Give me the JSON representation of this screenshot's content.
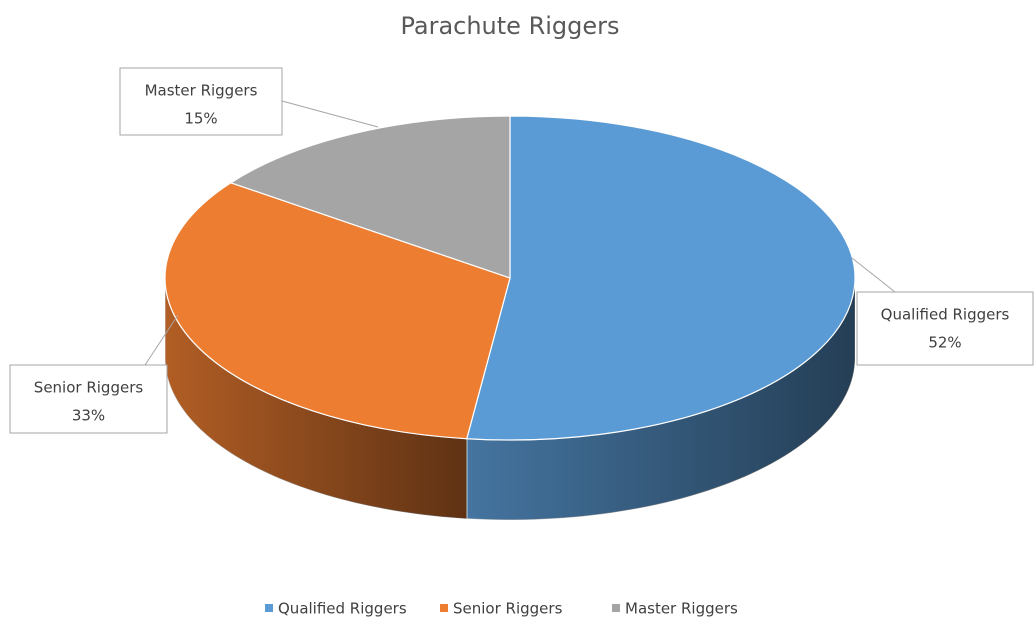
{
  "chart_data": {
    "type": "pie",
    "title": "Parachute Riggers",
    "categories": [
      "Qualified Riggers",
      "Senior Riggers",
      "Master Riggers"
    ],
    "values": [
      52,
      33,
      15
    ],
    "value_labels": [
      "52%",
      "33%",
      "15%"
    ],
    "colors": [
      "#5b9bd5",
      "#ed7d31",
      "#a5a5a5"
    ],
    "legend": "bottom"
  }
}
